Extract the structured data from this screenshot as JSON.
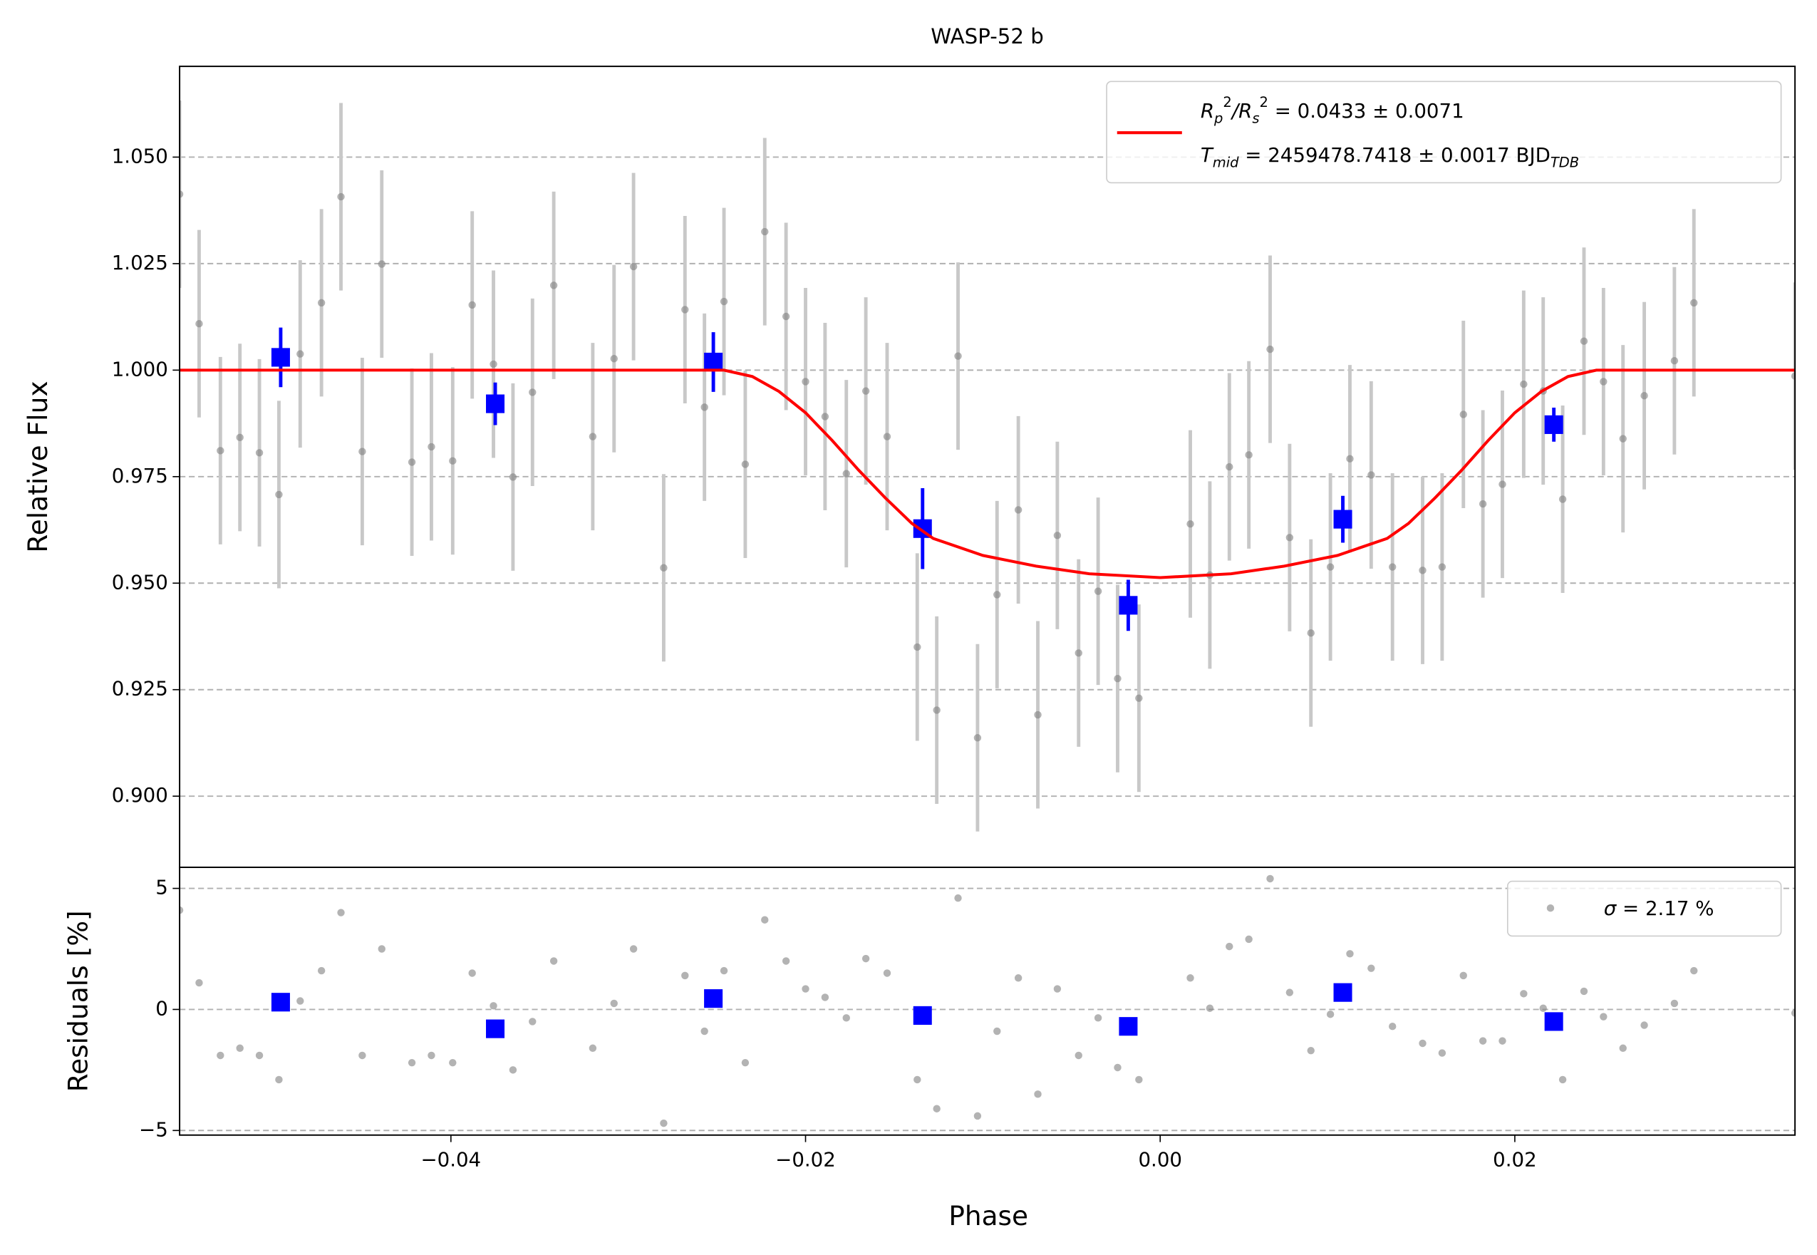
{
  "chart_data": [
    {
      "type": "scatter",
      "title": "WASP-52 b",
      "ylabel": "Relative Flux",
      "xlim": [
        -0.0553,
        0.0358
      ],
      "ylim": [
        0.8833,
        1.0713
      ],
      "yticks": [
        {
          "value": 0.9,
          "label": "0.900"
        },
        {
          "value": 0.925,
          "label": "0.925"
        },
        {
          "value": 0.95,
          "label": "0.950"
        },
        {
          "value": 0.975,
          "label": "0.975"
        },
        {
          "value": 1.0,
          "label": "1.000"
        },
        {
          "value": 1.025,
          "label": "1.025"
        },
        {
          "value": 1.05,
          "label": "1.050"
        }
      ],
      "grid": true,
      "legend": "upper right",
      "series": [
        {
          "style": "errorbar",
          "marker": "circle",
          "color": "#808080",
          "ecolor": "#c8c8c8",
          "x": [
            -0.0553,
            -0.0542,
            -0.053,
            -0.0519,
            -0.0508,
            -0.0497,
            -0.0485,
            -0.0473,
            -0.0462,
            -0.045,
            -0.0439,
            -0.0422,
            -0.0411,
            -0.0399,
            -0.0388,
            -0.0376,
            -0.0365,
            -0.0354,
            -0.0342,
            -0.032,
            -0.0308,
            -0.0297,
            -0.028,
            -0.0268,
            -0.0257,
            -0.0246,
            -0.0234,
            -0.0223,
            -0.0211,
            -0.02,
            -0.0189,
            -0.0177,
            -0.0166,
            -0.0154,
            -0.0137,
            -0.0126,
            -0.0114,
            -0.0103,
            -0.0092,
            -0.008,
            -0.0069,
            -0.0058,
            -0.0046,
            -0.0035,
            -0.0024,
            -0.0012,
            0.0017,
            0.0028,
            0.0039,
            0.005,
            0.0062,
            0.0073,
            0.0085,
            0.0096,
            0.0107,
            0.0119,
            0.0131,
            0.0148,
            0.0159,
            0.0171,
            0.0182,
            0.0193,
            0.0205,
            0.0216,
            0.0227,
            0.0239,
            0.025,
            0.0261,
            0.0273,
            0.029,
            0.0301,
            0.0358
          ],
          "values": [
            1.0413,
            1.0109,
            0.9811,
            0.9842,
            0.9806,
            0.9708,
            1.0038,
            1.0158,
            1.0407,
            0.9809,
            1.0249,
            0.9784,
            0.982,
            0.9787,
            1.0153,
            1.0014,
            0.9749,
            0.9948,
            1.0199,
            0.9844,
            1.0027,
            1.0243,
            0.9536,
            1.0142,
            0.9913,
            1.0161,
            0.9779,
            1.0325,
            1.0126,
            0.9973,
            0.9891,
            0.9757,
            0.9951,
            0.9844,
            0.935,
            0.9202,
            1.0033,
            0.9137,
            0.9473,
            0.9672,
            0.9191,
            0.9612,
            0.9336,
            0.9481,
            0.9276,
            0.923,
            0.9639,
            0.9519,
            0.9773,
            0.9801,
            1.0049,
            0.9607,
            0.9383,
            0.9538,
            0.9792,
            0.9754,
            0.9538,
            0.953,
            0.9538,
            0.9896,
            0.9686,
            0.9732,
            0.9967,
            0.9951,
            0.9697,
            1.0068,
            0.9973,
            0.9839,
            0.994,
            1.0022,
            1.0158,
            0.9986
          ],
          "errors": [
            0.022,
            0.022,
            0.022,
            0.022,
            0.022,
            0.022,
            0.022,
            0.022,
            0.022,
            0.022,
            0.022,
            0.022,
            0.022,
            0.022,
            0.022,
            0.022,
            0.022,
            0.022,
            0.022,
            0.022,
            0.022,
            0.022,
            0.022,
            0.022,
            0.022,
            0.022,
            0.022,
            0.022,
            0.022,
            0.022,
            0.022,
            0.022,
            0.022,
            0.022,
            0.022,
            0.022,
            0.022,
            0.022,
            0.022,
            0.022,
            0.022,
            0.022,
            0.022,
            0.022,
            0.022,
            0.022,
            0.022,
            0.022,
            0.022,
            0.022,
            0.022,
            0.022,
            0.022,
            0.022,
            0.022,
            0.022,
            0.022,
            0.022,
            0.022,
            0.022,
            0.022,
            0.022,
            0.022,
            0.022,
            0.022,
            0.022,
            0.022,
            0.022,
            0.022,
            0.022,
            0.022,
            0.022
          ]
        },
        {
          "style": "errorbar",
          "marker": "square",
          "color": "#0000ff",
          "ecolor": "#0000ff",
          "x": [
            -0.0496,
            -0.0375,
            -0.0252,
            -0.0134,
            -0.0018,
            0.0103,
            0.0222
          ],
          "values": [
            1.003,
            0.9921,
            1.0019,
            0.9628,
            0.9448,
            0.965,
            0.9872
          ],
          "errors": [
            0.007,
            0.005,
            0.007,
            0.0095,
            0.006,
            0.0055,
            0.004
          ]
        },
        {
          "style": "line",
          "color": "#ff0000",
          "name": [
            "R",
            "p",
            "2",
            "/R",
            "s",
            "2",
            " = 0.0433 ± 0.0071"
          ],
          "name2": [
            "T",
            "mid",
            " = 2459478.7418 ± 0.0017 BJD",
            "TDB"
          ],
          "x": [
            -0.0553,
            -0.0246,
            -0.023,
            -0.0215,
            -0.02,
            -0.0185,
            -0.017,
            -0.0155,
            -0.014,
            -0.0128,
            -0.01,
            -0.007,
            -0.004,
            0.0,
            0.004,
            0.007,
            0.01,
            0.0128,
            0.014,
            0.0155,
            0.017,
            0.0185,
            0.02,
            0.0215,
            0.023,
            0.0246,
            0.0358
          ],
          "values": [
            1.0,
            1.0,
            0.9985,
            0.995,
            0.99,
            0.9835,
            0.9765,
            0.97,
            0.964,
            0.9605,
            0.9565,
            0.954,
            0.9522,
            0.9513,
            0.9522,
            0.954,
            0.9565,
            0.9605,
            0.964,
            0.97,
            0.9765,
            0.9835,
            0.99,
            0.995,
            0.9985,
            1.0,
            1.0
          ]
        }
      ]
    },
    {
      "type": "scatter",
      "ylabel": "Residuals [%]",
      "xlabel": "Phase",
      "xlim": [
        -0.0553,
        0.0358
      ],
      "ylim": [
        -5.19,
        5.87
      ],
      "xticks": [
        {
          "value": -0.04,
          "label": "−0.04"
        },
        {
          "value": -0.02,
          "label": "−0.02"
        },
        {
          "value": 0.0,
          "label": "0.00"
        },
        {
          "value": 0.02,
          "label": "0.02"
        }
      ],
      "yticks": [
        {
          "value": -5,
          "label": "−5"
        },
        0,
        5
      ],
      "grid": true,
      "legend": "upper right",
      "series": [
        {
          "style": "scatter",
          "marker": "circle",
          "color": "#808080",
          "name": [
            "σ",
            " = 2.17 %"
          ],
          "x": [
            -0.0553,
            -0.0542,
            -0.053,
            -0.0519,
            -0.0508,
            -0.0497,
            -0.0485,
            -0.0473,
            -0.0462,
            -0.045,
            -0.0439,
            -0.0422,
            -0.0411,
            -0.0399,
            -0.0388,
            -0.0376,
            -0.0365,
            -0.0354,
            -0.0342,
            -0.032,
            -0.0308,
            -0.0297,
            -0.028,
            -0.0268,
            -0.0257,
            -0.0246,
            -0.0234,
            -0.0223,
            -0.0211,
            -0.02,
            -0.0189,
            -0.0177,
            -0.0166,
            -0.0154,
            -0.0137,
            -0.0126,
            -0.0114,
            -0.0103,
            -0.0092,
            -0.008,
            -0.0069,
            -0.0058,
            -0.0046,
            -0.0035,
            -0.0024,
            -0.0012,
            0.0017,
            0.0028,
            0.0039,
            0.005,
            0.0062,
            0.0073,
            0.0085,
            0.0096,
            0.0107,
            0.0119,
            0.0131,
            0.0148,
            0.0159,
            0.0171,
            0.0182,
            0.0193,
            0.0205,
            0.0216,
            0.0227,
            0.0239,
            0.025,
            0.0261,
            0.0273,
            0.029,
            0.0301,
            0.0358
          ],
          "values": [
            4.1,
            1.1,
            -1.9,
            -1.6,
            -1.9,
            -2.9,
            0.35,
            1.6,
            4.0,
            -1.9,
            2.5,
            -2.2,
            -1.9,
            -2.2,
            1.5,
            0.15,
            -2.5,
            -0.5,
            2.0,
            -1.6,
            0.25,
            2.5,
            -4.7,
            1.4,
            -0.9,
            1.6,
            -2.2,
            3.7,
            2.0,
            0.85,
            0.5,
            -0.35,
            2.1,
            1.5,
            -2.9,
            -4.1,
            4.6,
            -4.4,
            -0.9,
            1.3,
            -3.5,
            0.85,
            -1.9,
            -0.35,
            -2.4,
            -2.9,
            1.3,
            0.05,
            2.6,
            2.9,
            5.4,
            0.7,
            -1.7,
            -0.2,
            2.3,
            1.7,
            -0.7,
            -1.4,
            -1.8,
            1.4,
            -1.3,
            -1.3,
            0.65,
            0.05,
            -2.9,
            0.75,
            -0.3,
            -1.6,
            -0.65,
            0.25,
            1.6,
            -0.15
          ]
        },
        {
          "style": "scatter",
          "marker": "square",
          "color": "#0000ff",
          "x": [
            -0.0496,
            -0.0375,
            -0.0252,
            -0.0134,
            -0.0018,
            0.0103,
            0.0222
          ],
          "values": [
            0.3,
            -0.8,
            0.45,
            -0.25,
            -0.7,
            0.7,
            -0.5
          ]
        }
      ]
    }
  ]
}
